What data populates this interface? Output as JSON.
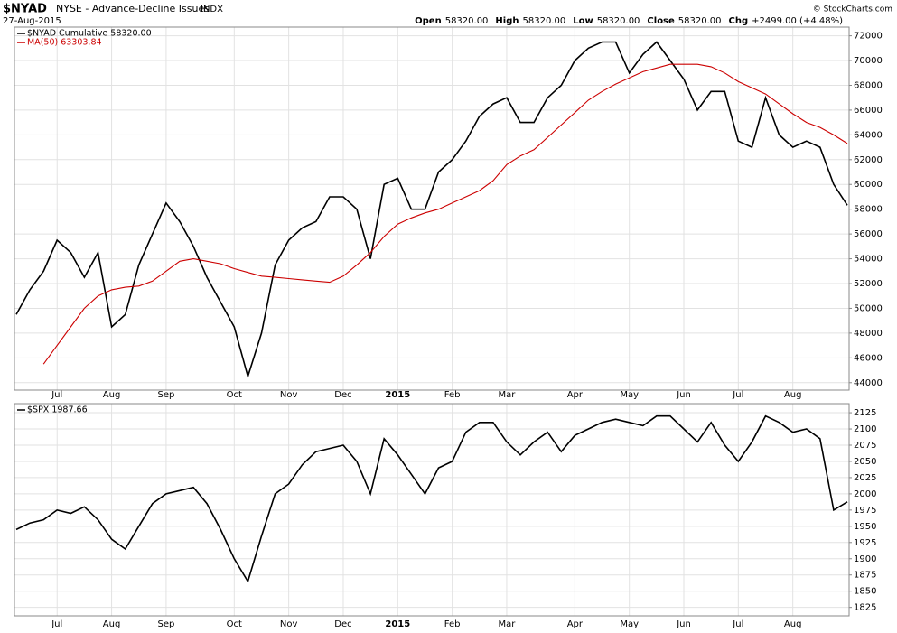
{
  "chart_data": [
    {
      "type": "line",
      "title": "$NYAD",
      "subtitle": "NYSE - Advance-Decline Issues",
      "exchange": "INDX",
      "date": "27-Aug-2015",
      "quote": [
        {
          "label": "Open",
          "value": "58320.00"
        },
        {
          "label": "High",
          "value": "58320.00"
        },
        {
          "label": "Low",
          "value": "58320.00"
        },
        {
          "label": "Close",
          "value": "58320.00"
        },
        {
          "label": "Chg",
          "value": "+2499.00 (+4.48%)"
        }
      ],
      "credit": "© StockCharts.com",
      "categories": [
        null,
        null,
        null,
        "Jul",
        null,
        null,
        null,
        "Aug",
        null,
        null,
        null,
        "Sep",
        null,
        null,
        null,
        null,
        "Oct",
        null,
        null,
        null,
        "Nov",
        null,
        null,
        null,
        "Dec",
        null,
        null,
        null,
        "2015",
        null,
        null,
        null,
        "Feb",
        null,
        null,
        null,
        "Mar",
        null,
        null,
        null,
        null,
        "Apr",
        null,
        null,
        null,
        "May",
        null,
        null,
        null,
        "Jun",
        null,
        null,
        null,
        "Jul",
        null,
        null,
        null,
        "Aug",
        null,
        null,
        null,
        null
      ],
      "series": [
        {
          "name": "$NYAD Cumulative 58320.00",
          "color": "#000000",
          "values": [
            49500,
            51500,
            53000,
            55500,
            54500,
            52500,
            54500,
            48500,
            49500,
            53500,
            56000,
            58500,
            57000,
            55000,
            52500,
            50500,
            48500,
            44500,
            48000,
            53500,
            55500,
            56500,
            57000,
            59000,
            59000,
            58000,
            54000,
            60000,
            60500,
            58000,
            58000,
            61000,
            62000,
            63500,
            65500,
            66500,
            67000,
            65000,
            65000,
            67000,
            68000,
            70000,
            71000,
            71500,
            71500,
            69000,
            70500,
            71500,
            70000,
            68500,
            66000,
            67500,
            67500,
            63500,
            63000,
            67000,
            64000,
            63000,
            63500,
            63000,
            60000,
            58320
          ]
        },
        {
          "name": "MA(50) 63303.84",
          "color": "#cc0000",
          "values": [
            null,
            null,
            45500,
            47000,
            48500,
            50000,
            51000,
            51500,
            51700,
            51800,
            52200,
            53000,
            53800,
            54000,
            53800,
            53600,
            53200,
            52900,
            52600,
            52500,
            52400,
            52300,
            52200,
            52100,
            52600,
            53500,
            54500,
            55800,
            56800,
            57300,
            57700,
            58000,
            58500,
            59000,
            59500,
            60300,
            61600,
            62300,
            62800,
            63800,
            64800,
            65800,
            66800,
            67500,
            68100,
            68600,
            69100,
            69400,
            69700,
            69700,
            69700,
            69500,
            69000,
            68300,
            67800,
            67300,
            66500,
            65700,
            65000,
            64600,
            64000,
            63303.84
          ]
        }
      ],
      "ylim": [
        43400,
        72700
      ],
      "yticks": [
        44000,
        46000,
        48000,
        50000,
        52000,
        54000,
        56000,
        58000,
        60000,
        62000,
        64000,
        66000,
        68000,
        70000,
        72000
      ],
      "grid": true
    },
    {
      "type": "line",
      "categories": [
        null,
        null,
        null,
        "Jul",
        null,
        null,
        null,
        "Aug",
        null,
        null,
        null,
        "Sep",
        null,
        null,
        null,
        null,
        "Oct",
        null,
        null,
        null,
        "Nov",
        null,
        null,
        null,
        "Dec",
        null,
        null,
        null,
        "2015",
        null,
        null,
        null,
        "Feb",
        null,
        null,
        null,
        "Mar",
        null,
        null,
        null,
        null,
        "Apr",
        null,
        null,
        null,
        "May",
        null,
        null,
        null,
        "Jun",
        null,
        null,
        null,
        "Jul",
        null,
        null,
        null,
        "Aug",
        null,
        null,
        null,
        null
      ],
      "series": [
        {
          "name": "$SPX 1987.66",
          "color": "#000000",
          "values": [
            1945,
            1955,
            1960,
            1975,
            1970,
            1980,
            1960,
            1930,
            1915,
            1950,
            1985,
            2000,
            2005,
            2010,
            1985,
            1945,
            1900,
            1865,
            1935,
            2000,
            2015,
            2045,
            2065,
            2070,
            2075,
            2050,
            2000,
            2085,
            2060,
            2030,
            2000,
            2040,
            2050,
            2095,
            2110,
            2110,
            2080,
            2060,
            2080,
            2095,
            2065,
            2090,
            2100,
            2110,
            2115,
            2110,
            2105,
            2120,
            2120,
            2100,
            2080,
            2110,
            2075,
            2050,
            2080,
            2120,
            2110,
            2095,
            2100,
            2085,
            1975,
            1987.66
          ]
        }
      ],
      "ylim": [
        1812,
        2139
      ],
      "yticks": [
        1825,
        1850,
        1875,
        1900,
        1925,
        1950,
        1975,
        2000,
        2025,
        2050,
        2075,
        2100,
        2125
      ],
      "grid": true
    }
  ]
}
